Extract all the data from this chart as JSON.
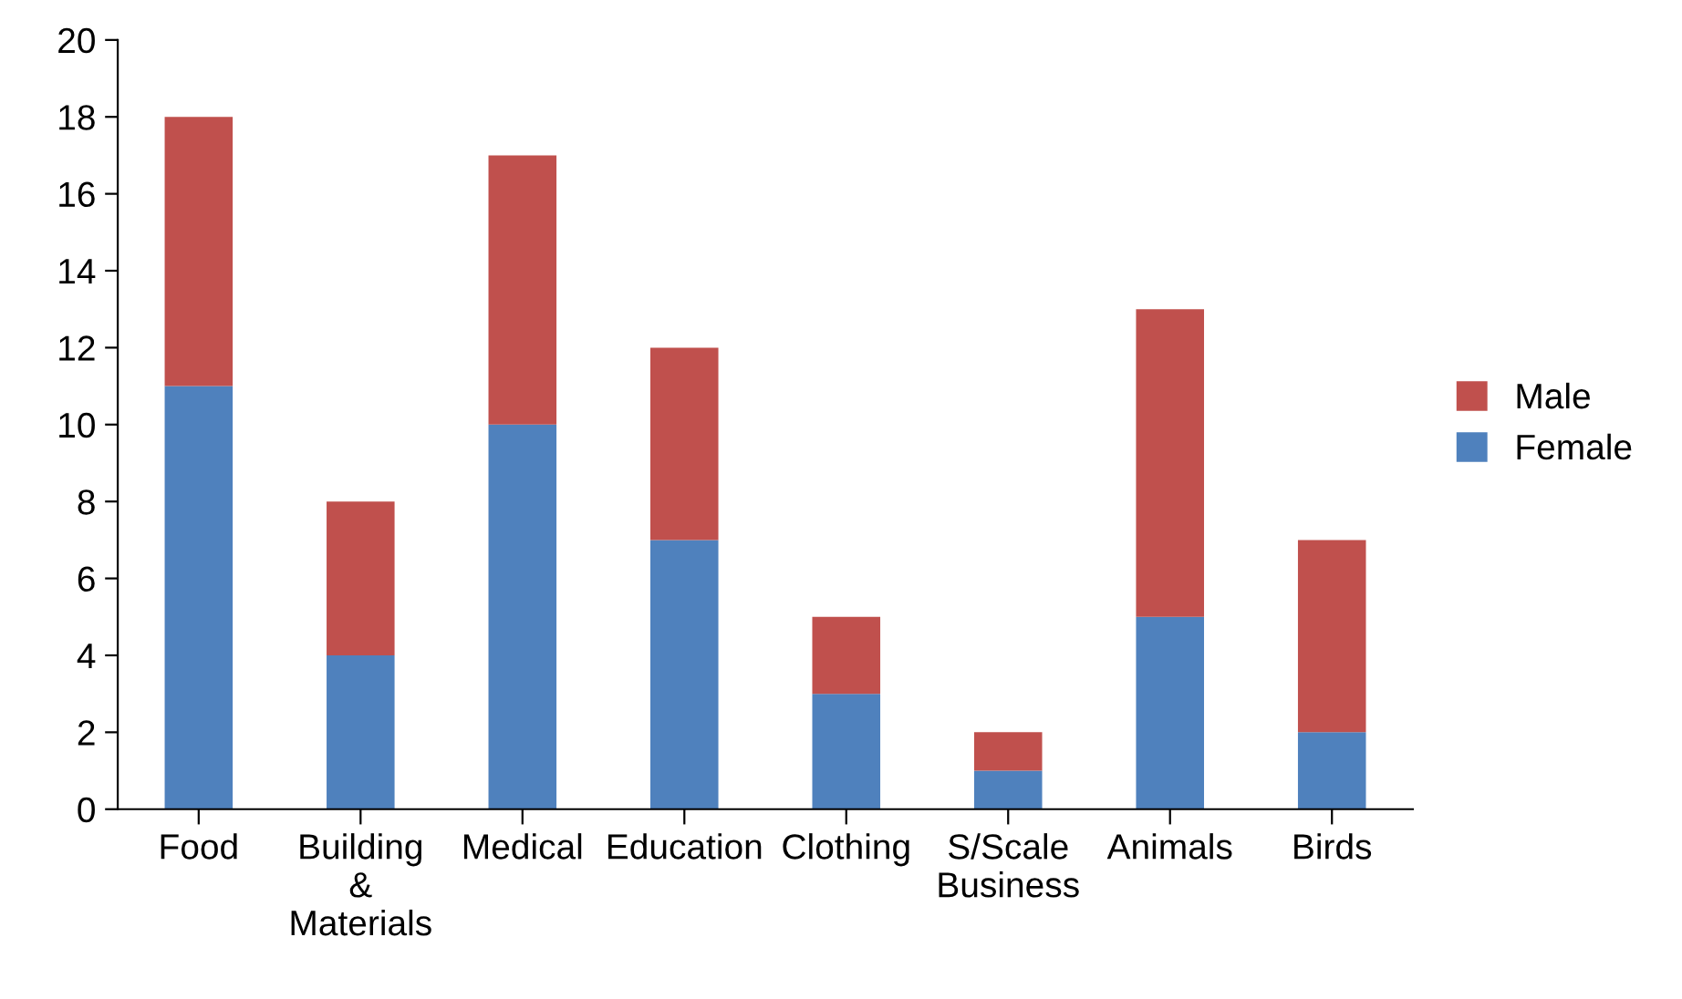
{
  "chart_data": {
    "type": "bar",
    "stacked": true,
    "categories": [
      "Food",
      "Building\n&\nMaterials",
      "Medical",
      "Education",
      "Clothing",
      "S/Scale\nBusiness",
      "Animals",
      "Birds"
    ],
    "series": [
      {
        "name": "Female",
        "color": "#4f81bd",
        "values": [
          11,
          4,
          10,
          7,
          3,
          1,
          5,
          2
        ]
      },
      {
        "name": "Male",
        "color": "#c0504d",
        "values": [
          7,
          4,
          7,
          5,
          2,
          1,
          8,
          5
        ]
      }
    ],
    "ylim": [
      0,
      20
    ],
    "yticks": [
      0,
      2,
      4,
      6,
      8,
      10,
      12,
      14,
      16,
      18,
      20
    ],
    "grid": false,
    "legend": "right"
  }
}
